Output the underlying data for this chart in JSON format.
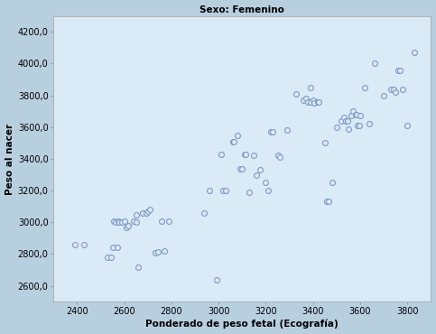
{
  "title": "Sexo: Femenino",
  "xlabel": "Ponderado de peso fetal (Ecografía)",
  "ylabel": "Peso al nacer",
  "xlim": [
    2300,
    3900
  ],
  "ylim": [
    2500,
    4300
  ],
  "xticks": [
    2400,
    2600,
    2800,
    3000,
    3200,
    3400,
    3600,
    3800
  ],
  "yticks": [
    2600,
    2800,
    3000,
    3200,
    3400,
    3600,
    3800,
    4000,
    4200
  ],
  "background_color": "#daeaf6",
  "outer_color": "#b8cfe0",
  "scatter_edge_color": "#8098c0",
  "marker_facecolor": "#daeaf6",
  "title_fontsize": 7.5,
  "label_fontsize": 7.5,
  "tick_fontsize": 7,
  "points": [
    [
      2390,
      2860
    ],
    [
      2430,
      2860
    ],
    [
      2530,
      2780
    ],
    [
      2545,
      2780
    ],
    [
      2555,
      3005
    ],
    [
      2565,
      3000
    ],
    [
      2575,
      3010
    ],
    [
      2580,
      3000
    ],
    [
      2590,
      3000
    ],
    [
      2600,
      3010
    ],
    [
      2610,
      2970
    ],
    [
      2615,
      2980
    ],
    [
      2550,
      2840
    ],
    [
      2570,
      2840
    ],
    [
      2640,
      3010
    ],
    [
      2650,
      3000
    ],
    [
      2660,
      2720
    ],
    [
      2680,
      3060
    ],
    [
      2695,
      3060
    ],
    [
      2700,
      3070
    ],
    [
      2710,
      3080
    ],
    [
      2730,
      2810
    ],
    [
      2745,
      2815
    ],
    [
      2760,
      3010
    ],
    [
      2770,
      2820
    ],
    [
      2790,
      3010
    ],
    [
      2650,
      3050
    ],
    [
      2940,
      3060
    ],
    [
      2960,
      3200
    ],
    [
      2990,
      2640
    ],
    [
      3010,
      3430
    ],
    [
      3020,
      3200
    ],
    [
      3030,
      3200
    ],
    [
      3060,
      3510
    ],
    [
      3065,
      3510
    ],
    [
      3080,
      3550
    ],
    [
      3090,
      3340
    ],
    [
      3100,
      3340
    ],
    [
      3110,
      3430
    ],
    [
      3115,
      3430
    ],
    [
      3130,
      3190
    ],
    [
      3150,
      3420
    ],
    [
      3160,
      3300
    ],
    [
      3175,
      3330
    ],
    [
      3200,
      3250
    ],
    [
      3210,
      3200
    ],
    [
      3220,
      3570
    ],
    [
      3230,
      3570
    ],
    [
      3250,
      3420
    ],
    [
      3260,
      3410
    ],
    [
      3290,
      3580
    ],
    [
      3330,
      3810
    ],
    [
      3360,
      3770
    ],
    [
      3370,
      3780
    ],
    [
      3380,
      3760
    ],
    [
      3390,
      3760
    ],
    [
      3400,
      3770
    ],
    [
      3405,
      3750
    ],
    [
      3420,
      3760
    ],
    [
      3425,
      3760
    ],
    [
      3390,
      3850
    ],
    [
      3450,
      3500
    ],
    [
      3460,
      3130
    ],
    [
      3465,
      3130
    ],
    [
      3480,
      3250
    ],
    [
      3500,
      3600
    ],
    [
      3520,
      3640
    ],
    [
      3530,
      3660
    ],
    [
      3540,
      3640
    ],
    [
      3545,
      3640
    ],
    [
      3560,
      3670
    ],
    [
      3570,
      3700
    ],
    [
      3580,
      3680
    ],
    [
      3585,
      3680
    ],
    [
      3590,
      3610
    ],
    [
      3595,
      3610
    ],
    [
      3550,
      3590
    ],
    [
      3600,
      3670
    ],
    [
      3620,
      3850
    ],
    [
      3640,
      3620
    ],
    [
      3660,
      4000
    ],
    [
      3700,
      3800
    ],
    [
      3730,
      3840
    ],
    [
      3740,
      3840
    ],
    [
      3750,
      3820
    ],
    [
      3760,
      3960
    ],
    [
      3770,
      3960
    ],
    [
      3780,
      3840
    ],
    [
      3800,
      3610
    ],
    [
      3830,
      4070
    ]
  ]
}
